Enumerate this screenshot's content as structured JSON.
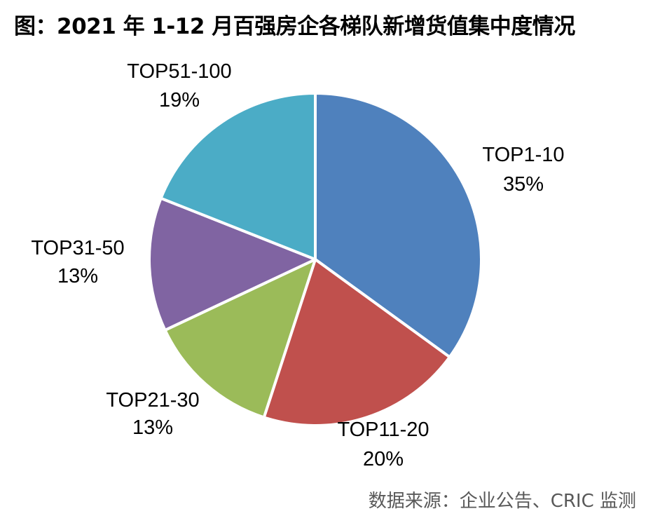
{
  "title": "图：2021 年 1-12 月百强房企各梯队新增货值集中度情况",
  "source": "数据来源：企业公告、CRIC 监测",
  "chart_data": {
    "type": "pie",
    "title": "图：2021 年 1-12 月百强房企各梯队新增货值集中度情况",
    "start_angle": "12 o'clock",
    "direction": "clockwise",
    "slices": [
      {
        "label": "TOP1-10",
        "value": 35,
        "value_label": "35%",
        "color": "#4F81BD"
      },
      {
        "label": "TOP11-20",
        "value": 20,
        "value_label": "20%",
        "color": "#C0504D"
      },
      {
        "label": "TOP21-30",
        "value": 13,
        "value_label": "13%",
        "color": "#9BBB59"
      },
      {
        "label": "TOP31-50",
        "value": 13,
        "value_label": "13%",
        "color": "#8064A2"
      },
      {
        "label": "TOP51-100",
        "value": 19,
        "value_label": "19%",
        "color": "#4BACC6"
      }
    ]
  }
}
